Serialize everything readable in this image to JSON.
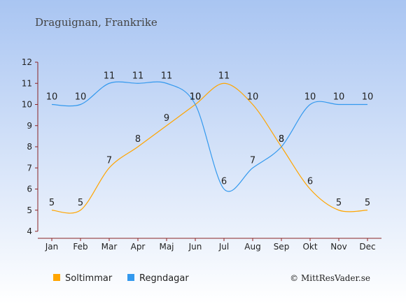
{
  "chart_data": {
    "type": "line",
    "title": "Draguignan, Frankrike",
    "categories": [
      "Jan",
      "Feb",
      "Mar",
      "Apr",
      "Maj",
      "Jun",
      "Jul",
      "Aug",
      "Sep",
      "Okt",
      "Nov",
      "Dec"
    ],
    "ylim": [
      4,
      12
    ],
    "yticks": [
      4,
      5,
      6,
      7,
      8,
      9,
      10,
      11,
      12
    ],
    "grid": false,
    "legend_position": "bottom-left",
    "series": [
      {
        "name": "Soltimmar",
        "color": "#FFA500",
        "values": [
          5,
          5,
          7,
          8,
          9,
          10,
          11,
          10,
          8,
          6,
          5,
          5
        ]
      },
      {
        "name": "Regndagar",
        "color": "#3399EE",
        "values": [
          10,
          10,
          11,
          11,
          11,
          10,
          6,
          7,
          8,
          10,
          10,
          10
        ]
      }
    ],
    "credit": "© MittResVader.se"
  },
  "colors": {
    "background_top": "#A9C5F2",
    "background_bottom": "#FFFFFF",
    "axis": "#8A2323"
  }
}
